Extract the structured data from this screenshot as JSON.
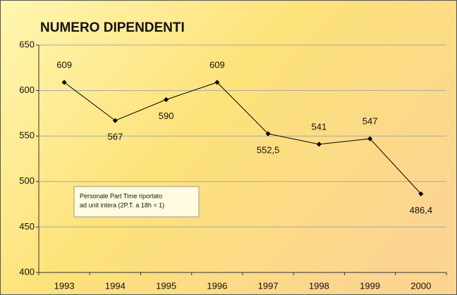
{
  "chart_data": {
    "type": "line",
    "title": "NUMERO DIPENDENTI",
    "categories": [
      "1993",
      "1994",
      "1995",
      "1996",
      "1997",
      "1998",
      "1999",
      "2000"
    ],
    "values": [
      609,
      567,
      590,
      609,
      552.5,
      541,
      547,
      486.4
    ],
    "value_labels": [
      "609",
      "567",
      "590",
      "609",
      "552,5",
      "541",
      "547",
      "486,4"
    ],
    "color": "#000000",
    "ylim": [
      400,
      650
    ],
    "yticks": [
      400,
      450,
      500,
      550,
      600,
      650
    ],
    "grid": true,
    "annotation": [
      "Personale Part Time riportato",
      "ad unit intera (2P.T. a 18h = 1)"
    ]
  }
}
